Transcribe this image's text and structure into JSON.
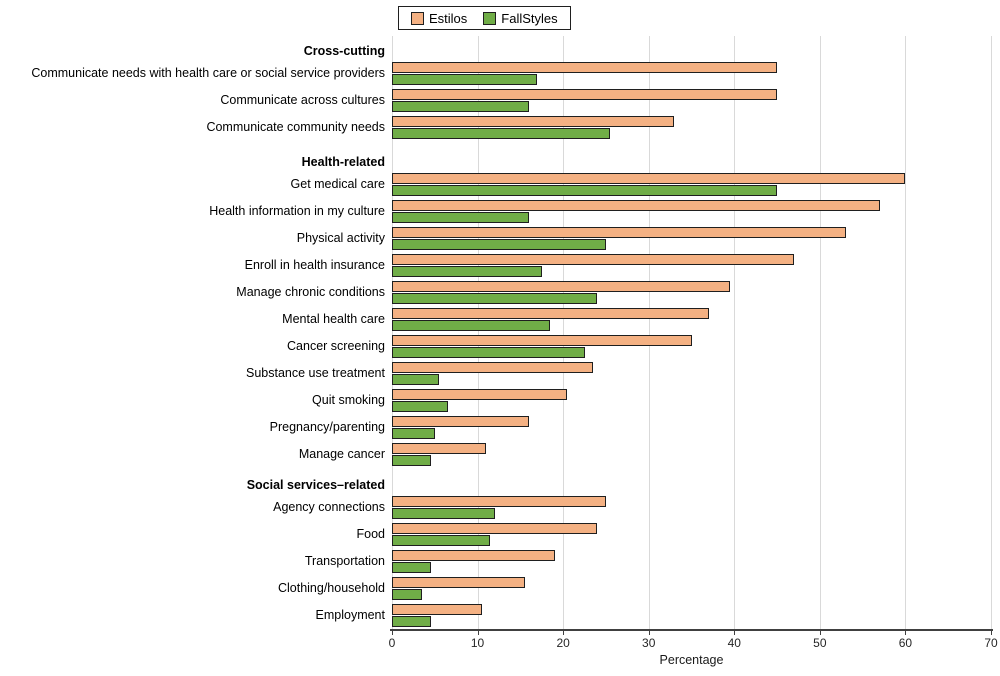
{
  "legend": {
    "position": "top",
    "items": [
      {
        "label": "Estilos",
        "color": "#F4B183"
      },
      {
        "label": "FallStyles",
        "color": "#70AD47"
      }
    ]
  },
  "chart_data": {
    "type": "bar",
    "orientation": "horizontal",
    "title": "",
    "xlabel": "Percentage",
    "ylabel": "",
    "xlim": [
      0,
      70
    ],
    "xticks": [
      0,
      10,
      20,
      30,
      40,
      50,
      60,
      70
    ],
    "grid": true,
    "legend_position": "top",
    "series": [
      "Estilos",
      "FallStyles"
    ],
    "colors": {
      "estilos": "#F4B183",
      "fallstyles": "#70AD47",
      "bar_border": "#1f1f1f",
      "gridline": "#d9d9d9",
      "axis_line": "#404040"
    },
    "groups": [
      {
        "header": "Cross-cutting",
        "rows": [
          {
            "label": "Communicate needs with health care or social service providers",
            "values": [
              45,
              17
            ]
          },
          {
            "label": "Communicate across cultures",
            "values": [
              45,
              16
            ]
          },
          {
            "label": "Communicate community needs",
            "values": [
              33,
              25.5
            ]
          }
        ]
      },
      {
        "header": "Health-related",
        "rows": [
          {
            "label": "Get medical care",
            "values": [
              60,
              45
            ]
          },
          {
            "label": "Health information in my culture",
            "values": [
              57,
              16
            ]
          },
          {
            "label": "Physical activity",
            "values": [
              53,
              25
            ]
          },
          {
            "label": "Enroll in health insurance",
            "values": [
              47,
              17.5
            ]
          },
          {
            "label": "Manage chronic conditions",
            "values": [
              39.5,
              24
            ]
          },
          {
            "label": "Mental health care",
            "values": [
              37,
              18.5
            ]
          },
          {
            "label": "Cancer screening",
            "values": [
              35,
              22.5
            ]
          },
          {
            "label": "Substance use treatment",
            "values": [
              23.5,
              5.5
            ]
          },
          {
            "label": "Quit smoking",
            "values": [
              20.5,
              6.5
            ]
          },
          {
            "label": "Pregnancy/parenting",
            "values": [
              16,
              5
            ]
          },
          {
            "label": "Manage cancer",
            "values": [
              11,
              4.5
            ]
          }
        ]
      },
      {
        "header": "Social services–related",
        "rows": [
          {
            "label": "Agency connections",
            "values": [
              25,
              12
            ]
          },
          {
            "label": "Food",
            "values": [
              24,
              11.5
            ]
          },
          {
            "label": "Transportation",
            "values": [
              19,
              4.5
            ]
          },
          {
            "label": "Clothing/household",
            "values": [
              15.5,
              3.5
            ]
          },
          {
            "label": "Employment",
            "values": [
              10.5,
              4.5
            ]
          }
        ]
      }
    ]
  }
}
